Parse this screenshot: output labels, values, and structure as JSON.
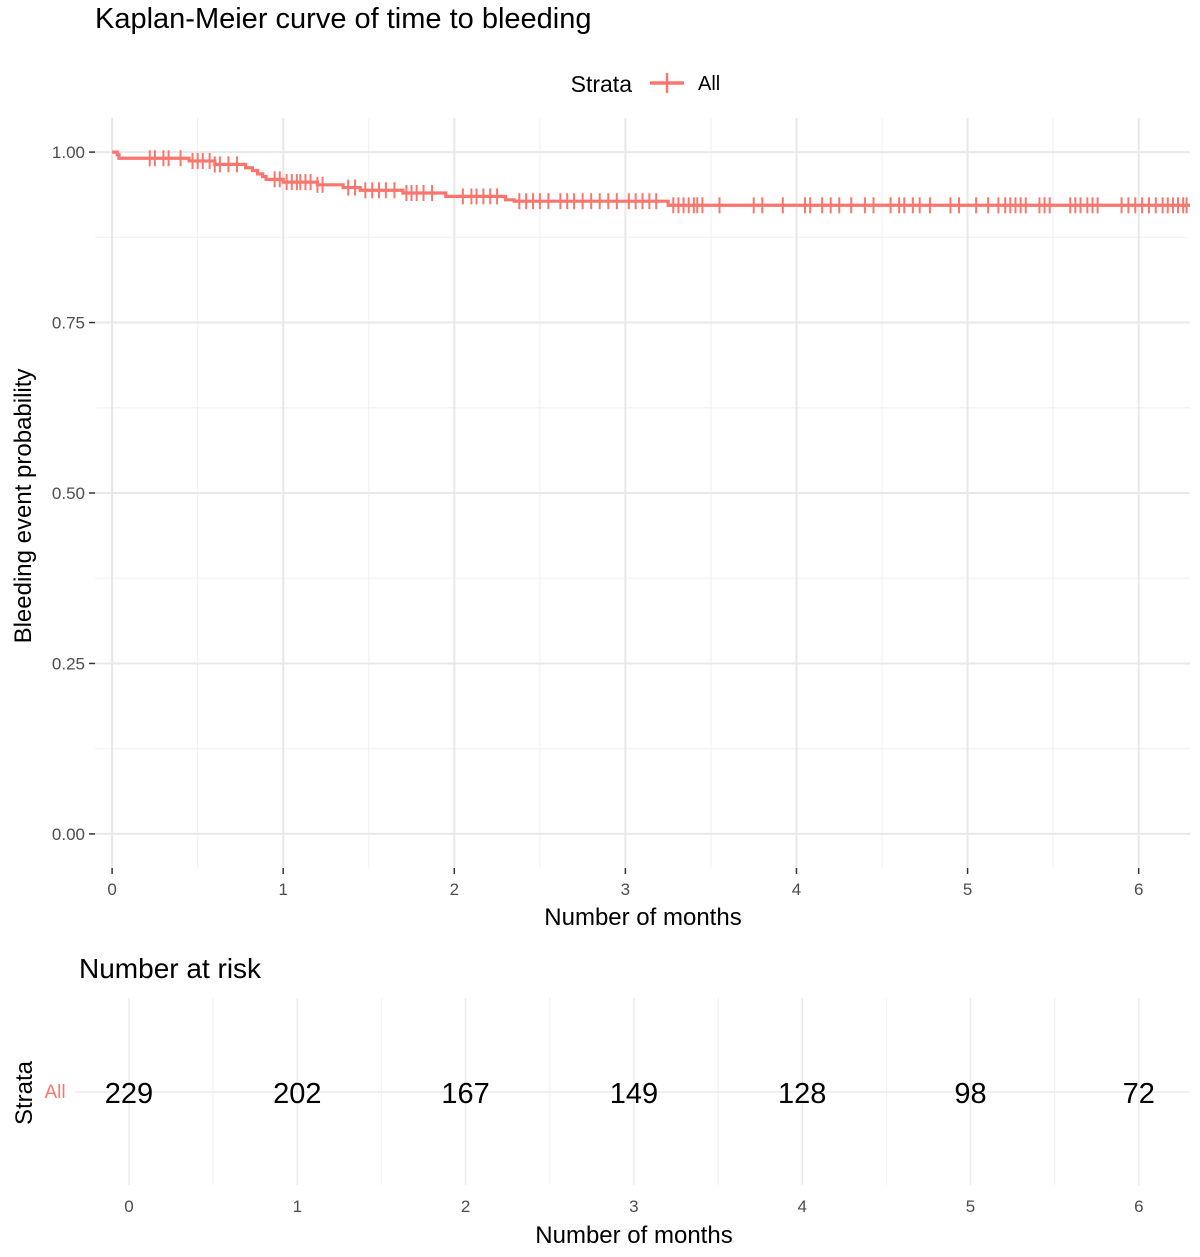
{
  "chart_data": [
    {
      "type": "line",
      "subtype": "kaplan-meier-step",
      "title": "Kaplan-Meier curve of time to bleeding",
      "xlabel": "Number of months",
      "ylabel": "Bleeding event probability",
      "xlim": [
        -0.1,
        6.3
      ],
      "ylim": [
        -0.05,
        1.05
      ],
      "x_ticks": [
        0,
        1,
        2,
        3,
        4,
        5,
        6
      ],
      "x_tick_labels": [
        "0",
        "1",
        "2",
        "3",
        "4",
        "5",
        "6"
      ],
      "y_ticks": [
        0,
        0.25,
        0.5,
        0.75,
        1.0
      ],
      "y_tick_labels": [
        "0.00",
        "0.25",
        "0.50",
        "0.75",
        "1.00"
      ],
      "grid": true,
      "legend": {
        "title": "Strata",
        "position": "top",
        "entries": [
          "All"
        ]
      },
      "colors": {
        "All": "#f8766d"
      },
      "series": [
        {
          "name": "All",
          "steps": [
            [
              0,
              1.0
            ],
            [
              0.03,
              0.996
            ],
            [
              0.04,
              0.991
            ],
            [
              0.45,
              0.987
            ],
            [
              0.6,
              0.982
            ],
            [
              0.78,
              0.977
            ],
            [
              0.82,
              0.973
            ],
            [
              0.85,
              0.968
            ],
            [
              0.88,
              0.964
            ],
            [
              0.9,
              0.96
            ],
            [
              1.0,
              0.956
            ],
            [
              1.2,
              0.952
            ],
            [
              1.35,
              0.948
            ],
            [
              1.45,
              0.944
            ],
            [
              1.7,
              0.94
            ],
            [
              1.95,
              0.935
            ],
            [
              2.3,
              0.93
            ],
            [
              2.35,
              0.928
            ],
            [
              3.25,
              0.922
            ],
            [
              6.3,
              0.922
            ]
          ],
          "censor_times": [
            0.22,
            0.25,
            0.3,
            0.33,
            0.4,
            0.47,
            0.5,
            0.53,
            0.57,
            0.6,
            0.63,
            0.68,
            0.73,
            0.95,
            0.98,
            1.02,
            1.05,
            1.08,
            1.1,
            1.13,
            1.16,
            1.2,
            1.23,
            1.38,
            1.42,
            1.48,
            1.52,
            1.56,
            1.6,
            1.65,
            1.72,
            1.75,
            1.78,
            1.82,
            1.87,
            2.05,
            2.1,
            2.13,
            2.17,
            2.21,
            2.25,
            2.38,
            2.42,
            2.46,
            2.5,
            2.55,
            2.62,
            2.66,
            2.7,
            2.75,
            2.8,
            2.85,
            2.9,
            2.95,
            3.02,
            3.06,
            3.1,
            3.14,
            3.18,
            3.28,
            3.31,
            3.34,
            3.37,
            3.4,
            3.42,
            3.45,
            3.55,
            3.75,
            3.8,
            3.92,
            4.05,
            4.08,
            4.15,
            4.2,
            4.25,
            4.32,
            4.4,
            4.45,
            4.55,
            4.6,
            4.63,
            4.68,
            4.72,
            4.78,
            4.9,
            4.95,
            5.05,
            5.12,
            5.18,
            5.22,
            5.25,
            5.28,
            5.31,
            5.34,
            5.42,
            5.45,
            5.48,
            5.6,
            5.63,
            5.66,
            5.7,
            5.73,
            5.76,
            5.9,
            5.94,
            5.98,
            6.02,
            6.06,
            6.1,
            6.14,
            6.17,
            6.2,
            6.23,
            6.26,
            6.28
          ]
        }
      ]
    },
    {
      "type": "table",
      "title": "Number at risk",
      "xlabel": "Number of months",
      "ylabel": "Strata",
      "row_label": "All",
      "x": [
        0,
        1,
        2,
        3,
        4,
        5,
        6
      ],
      "x_tick_labels": [
        "0",
        "1",
        "2",
        "3",
        "4",
        "5",
        "6"
      ],
      "values": [
        "229",
        "202",
        "167",
        "149",
        "128",
        "98",
        "72"
      ],
      "grid": true
    }
  ]
}
